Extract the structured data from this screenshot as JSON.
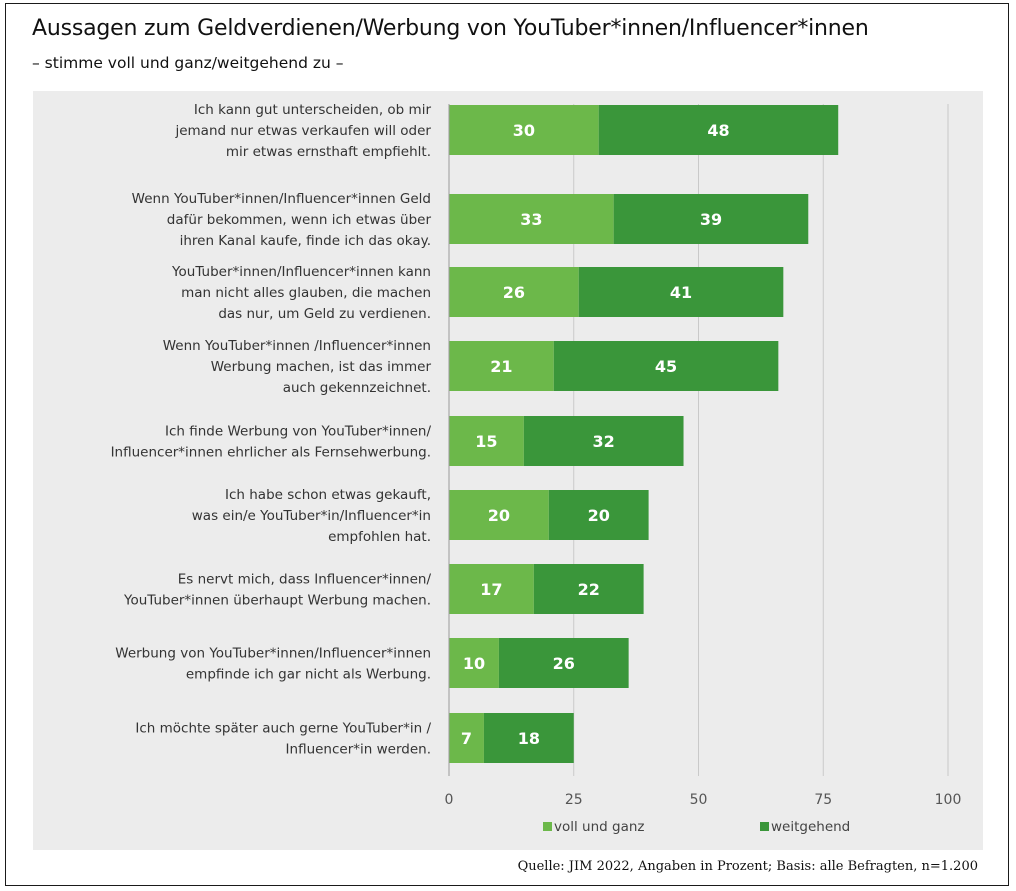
{
  "title": "Aussagen zum Geldverdienen/Werbung von YouTuber*innen/Influencer*innen",
  "subtitle": "– stimme voll und ganz/weitgehend zu –",
  "source": "Quelle: JIM 2022, Angaben in Prozent; Basis: alle Befragten, n=1.200",
  "colors": {
    "voll_und_ganz": "#6cb84a",
    "weitgehend": "#3a963a",
    "grid": "#c9c9c9",
    "panel": "#ececec"
  },
  "chart_data": {
    "type": "bar",
    "orientation": "horizontal",
    "stacked": true,
    "categories": [
      [
        "Ich kann gut unterscheiden, ob mir",
        "jemand nur etwas verkaufen will oder",
        "mir etwas ernsthaft empfiehlt."
      ],
      [
        "Wenn YouTuber*innen/Influencer*innen Geld",
        "dafür bekommen, wenn ich etwas über",
        "ihren Kanal kaufe, finde ich das okay."
      ],
      [
        "YouTuber*innen/Influencer*innen kann",
        "man nicht alles glauben, die machen",
        "das nur, um Geld zu verdienen."
      ],
      [
        "Wenn YouTuber*innen /Influencer*innen",
        "Werbung machen, ist das immer",
        "auch gekennzeichnet."
      ],
      [
        "Ich finde Werbung von YouTuber*innen/",
        "Influencer*innen ehrlicher als Fernsehwerbung."
      ],
      [
        "Ich habe schon etwas gekauft,",
        "was ein/e YouTuber*in/Influencer*in",
        "empfohlen hat."
      ],
      [
        "Es nervt mich, dass Influencer*innen/",
        "YouTuber*innen überhaupt Werbung machen."
      ],
      [
        "Werbung von YouTuber*innen/Influencer*innen",
        "empfinde ich gar nicht als Werbung."
      ],
      [
        "Ich möchte später auch gerne YouTuber*in /",
        "Influencer*in werden."
      ]
    ],
    "series": [
      {
        "name": "voll und ganz",
        "values": [
          30,
          33,
          26,
          21,
          15,
          20,
          17,
          10,
          7
        ]
      },
      {
        "name": "weitgehend",
        "values": [
          48,
          39,
          41,
          45,
          32,
          20,
          22,
          26,
          18
        ]
      }
    ],
    "xlim": [
      0,
      100
    ],
    "xticks": [
      0,
      25,
      50,
      75,
      100
    ],
    "grid": true,
    "legend_position": "bottom-right"
  }
}
